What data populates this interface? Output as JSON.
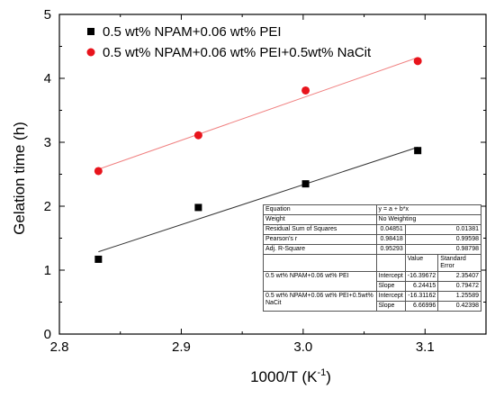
{
  "chart_data": {
    "type": "scatter",
    "title": "",
    "xlabel": "1000/T (K",
    "xlabel_superscript": "-1",
    "xlabel_suffix": ")",
    "ylabel": "Gelation time (h)",
    "xlim": [
      2.8,
      3.15
    ],
    "ylim": [
      0,
      5
    ],
    "xticks": [
      "2.8",
      "2.9",
      "3.0",
      "3.1"
    ],
    "yticks": [
      "0",
      "1",
      "2",
      "3",
      "4",
      "5"
    ],
    "grid": false,
    "legend_position": "top-left",
    "series": [
      {
        "name": "0.5 wt% NPAM+0.06 wt% PEI",
        "color": "#000000",
        "marker": "square",
        "x": [
          2.832,
          2.914,
          3.002,
          3.094
        ],
        "y": [
          1.17,
          1.98,
          2.35,
          2.87
        ],
        "fit": {
          "intercept": -16.39672,
          "slope": 6.24415,
          "x_range": [
            2.832,
            3.094
          ]
        },
        "fit_color": "#333333"
      },
      {
        "name": "0.5 wt% NPAM+0.06 wt% PEI+0.5wt% NaCit",
        "color": "#e8141c",
        "marker": "circle",
        "x": [
          2.832,
          2.914,
          3.002,
          3.094
        ],
        "y": [
          2.55,
          3.11,
          3.81,
          4.27
        ],
        "fit": {
          "intercept": -16.31162,
          "slope": 6.66996,
          "x_range": [
            2.832,
            3.094
          ]
        },
        "fit_color": "#f08080"
      }
    ]
  },
  "fit_table": {
    "equation_label": "Equation",
    "equation_value": "y = a + b*x",
    "weight_label": "Weight",
    "weight_value": "No Weighting",
    "rss_label": "Residual Sum of Squares",
    "rss_values": [
      "0.04851",
      "0.01381"
    ],
    "pearson_label": "Pearson's r",
    "pearson_values": [
      "0.98418",
      "0.99598"
    ],
    "adjr2_label": "Adj. R-Square",
    "adjr2_values": [
      "0.95293",
      "0.98798"
    ],
    "value_header": "Value",
    "stderr_header": "Standard Error",
    "rows": [
      {
        "dataset": "0.5 wt% NPAM+0.06 wt% PEI",
        "params": [
          {
            "name": "Intercept",
            "value": "-16.39672",
            "error": "2.35407"
          },
          {
            "name": "Slope",
            "value": "6.24415",
            "error": "0.79472"
          }
        ]
      },
      {
        "dataset": "0.5 wt% NPAM+0.06 wt% PEI+0.5wt% NaCit",
        "params": [
          {
            "name": "Intercept",
            "value": "-16.31162",
            "error": "1.25589"
          },
          {
            "name": "Slope",
            "value": "6.66996",
            "error": "0.42398"
          }
        ]
      }
    ]
  }
}
